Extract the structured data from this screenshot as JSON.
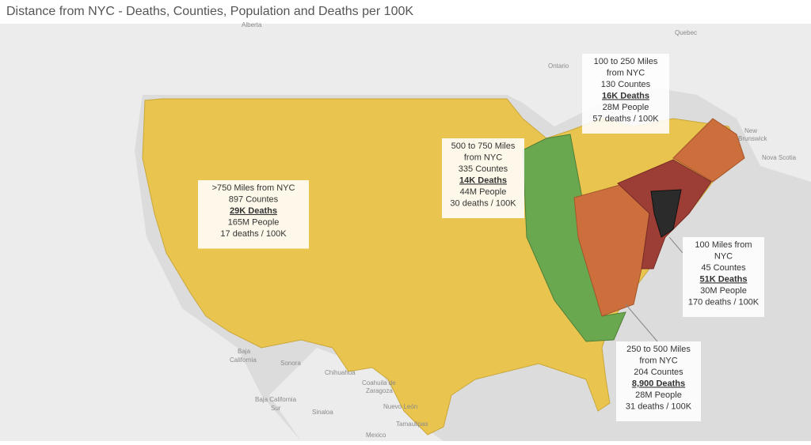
{
  "title": "Distance from NYC - Deaths, Counties, Population and Deaths per 100K",
  "annotations": [
    {
      "heading": [
        "100  to 250 Miles",
        "from NYC"
      ],
      "counties": "130 Countes",
      "deaths": "16K Deaths",
      "people": "28M People",
      "rate": "57 deaths / 100K"
    },
    {
      "heading": [
        "500 to 750 Miles",
        "from NYC"
      ],
      "counties": "335 Countes",
      "deaths": "14K Deaths",
      "people": "44M People",
      "rate": "30 deaths / 100K"
    },
    {
      "heading": [
        ">750 Miles from NYC"
      ],
      "counties": "897 Countes",
      "deaths": "29K Deaths",
      "people": "165M People",
      "rate": "17 deaths / 100K"
    },
    {
      "heading": [
        "100 Miles from",
        "NYC"
      ],
      "counties": "45 Countes",
      "deaths": "51K Deaths",
      "people": "30M People",
      "rate": "170 deaths / 100K"
    },
    {
      "heading": [
        "250  to 500 Miles",
        "from NYC"
      ],
      "counties": "204 Countes",
      "deaths": "8,900 Deaths",
      "people": "28M People",
      "rate": "31 deaths / 100K"
    }
  ],
  "places": [
    "Alberta",
    "Quebec",
    "Ontario",
    "New",
    "Brunswick",
    "Nova Scotia",
    "Baja",
    "California",
    "Sonora",
    "Chihuahua",
    "Coahuila de",
    "Zaragoza",
    "Nuevo León",
    "Baja California",
    "Sur",
    "Sinaloa",
    "Tamaulipas",
    "Mexico"
  ]
}
